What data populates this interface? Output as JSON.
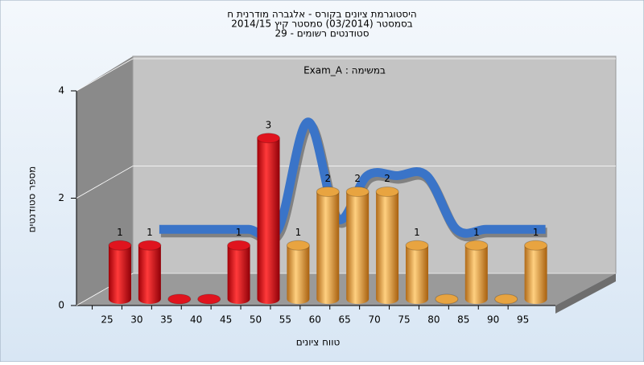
{
  "chart_data": {
    "type": "bar3d",
    "title_lines": [
      "היסטוגרמת ציונים בקורס - אלגברה מודרנית ח",
      "בסמסטר  (03/2014)  סמסטר קיץ 2014/15",
      "סטודנטים רשומים - 29"
    ],
    "subtitle": "במשימה : Exam_A",
    "x_label": "טווח ציונים",
    "y_label": "מספר סטודנטים",
    "categories": [
      "25",
      "30",
      "35",
      "40",
      "45",
      "50",
      "55",
      "60",
      "65",
      "70",
      "75",
      "80",
      "85",
      "90",
      "95"
    ],
    "values": [
      1,
      1,
      0,
      0,
      1,
      3,
      1,
      2,
      2,
      2,
      1,
      0,
      1,
      0,
      1
    ],
    "colors": [
      "#e0141e",
      "#e0141e",
      "#e0141e",
      "#e0141e",
      "#e0141e",
      "#e0141e",
      "#e8a440",
      "#e8a440",
      "#e8a440",
      "#e8a440",
      "#e8a440",
      "#e8a440",
      "#e8a440",
      "#e8a440",
      "#e8a440"
    ],
    "line_values": [
      null,
      1,
      1,
      1,
      1,
      1,
      3,
      1.2,
      2,
      2,
      2,
      1,
      1,
      1,
      1
    ],
    "line_color": "#3a74c8",
    "ylim": [
      0,
      4
    ],
    "yticks": [
      0,
      2,
      4
    ],
    "grid": true
  }
}
